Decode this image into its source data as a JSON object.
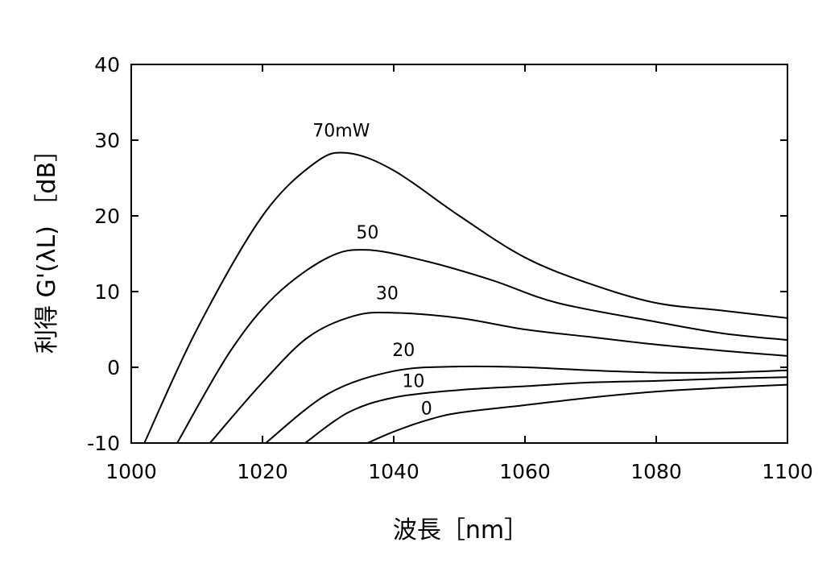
{
  "chart_data": {
    "type": "line",
    "xlabel": "波長［nm］",
    "ylabel": "利得 G'(λL) ［dB］",
    "xlim": [
      1000,
      1100
    ],
    "ylim": [
      -10,
      40
    ],
    "x_ticks": [
      "1000",
      "1020",
      "1040",
      "1060",
      "1080",
      "1100"
    ],
    "y_ticks": [
      "-10",
      "0",
      "10",
      "20",
      "30",
      "40"
    ],
    "grid": false,
    "series": [
      {
        "name": "70mW",
        "label_x": 1032,
        "label_y": 30.5,
        "x": [
          1002,
          1010,
          1020,
          1028,
          1033,
          1040,
          1050,
          1060,
          1070,
          1080,
          1090,
          1100
        ],
        "y": [
          -10,
          5,
          20,
          27,
          28.3,
          26,
          20,
          14.5,
          11,
          8.5,
          7.5,
          6.5
        ]
      },
      {
        "name": "50",
        "label_x": 1036,
        "label_y": 17,
        "x": [
          1007,
          1015,
          1022,
          1030,
          1036,
          1045,
          1055,
          1065,
          1080,
          1090,
          1100
        ],
        "y": [
          -10,
          2,
          9.5,
          14.5,
          15.5,
          14,
          11.5,
          8.5,
          6,
          4.5,
          3.6
        ]
      },
      {
        "name": "30",
        "label_x": 1039,
        "label_y": 9,
        "x": [
          1012,
          1020,
          1027,
          1034,
          1040,
          1050,
          1060,
          1070,
          1080,
          1090,
          1100
        ],
        "y": [
          -10,
          -2,
          4,
          6.8,
          7.2,
          6.5,
          5,
          4,
          3,
          2.2,
          1.5
        ]
      },
      {
        "name": "20",
        "label_x": 1041.5,
        "label_y": 1.5,
        "x": [
          1020.5,
          1030,
          1040,
          1050,
          1060,
          1070,
          1080,
          1090,
          1100
        ],
        "y": [
          -10,
          -3.5,
          -0.5,
          0.1,
          0,
          -0.4,
          -0.7,
          -0.7,
          -0.4
        ]
      },
      {
        "name": "10",
        "label_x": 1043,
        "label_y": -2.6,
        "x": [
          1026.5,
          1033,
          1040,
          1050,
          1060,
          1070,
          1080,
          1090,
          1100
        ],
        "y": [
          -10,
          -6,
          -4,
          -3,
          -2.5,
          -2,
          -1.8,
          -1.5,
          -1.3
        ]
      },
      {
        "name": "0",
        "label_x": 1045,
        "label_y": -6.2,
        "x": [
          1036,
          1040,
          1045,
          1050,
          1060,
          1070,
          1080,
          1090,
          1100
        ],
        "y": [
          -10,
          -8.5,
          -7,
          -6,
          -5,
          -4,
          -3.2,
          -2.7,
          -2.3
        ]
      }
    ]
  }
}
